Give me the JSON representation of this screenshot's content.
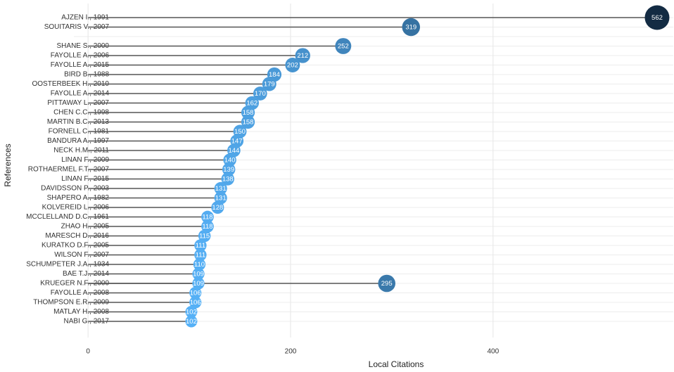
{
  "chart_data": {
    "type": "lollipop",
    "x_label": "Local Citations",
    "y_label": "References",
    "categories": [
      "AJZEN I., 1991",
      "SOUITARIS V., 2007",
      null,
      "SHANE S., 2000",
      "FAYOLLE A., 2006",
      "FAYOLLE A., 2015",
      "BIRD B., 1988",
      "OOSTERBEEK H., 2010",
      "FAYOLLE A., 2014",
      "PITTAWAY L., 2007",
      "CHEN C.C., 1998",
      "MARTIN B.C., 2013",
      "FORNELL C., 1981",
      "BANDURA A., 1997",
      "NECK H.M., 2011",
      "LINAN F., 2009",
      "ROTHAERMEL F.T., 2007",
      "LINAN F., 2015",
      "DAVIDSSON P., 2003",
      "SHAPERO A., 1982",
      "KOLVEREID L., 2006",
      "MCCLELLAND D.C., 1961",
      "ZHAO H., 2005",
      "MARESCH D., 2016",
      "KURATKO D.F., 2005",
      "WILSON F., 2007",
      "SCHUMPETER J.A., 1934",
      "BAE T.J., 2014",
      "KRUEGER N.F., 2000",
      "FAYOLLE A., 2008",
      "THOMPSON E.R., 2009",
      "MATLAY H., 2008",
      "NABI G., 2017"
    ],
    "values": [
      562,
      319,
      null,
      252,
      212,
      202,
      184,
      179,
      170,
      162,
      158,
      158,
      150,
      147,
      144,
      140,
      139,
      138,
      131,
      131,
      128,
      118,
      118,
      115,
      111,
      111,
      110,
      109,
      109,
      106,
      106,
      102,
      102
    ],
    "extra_points": [
      {
        "category": "KRUEGER N.F., 2000",
        "value": 295
      }
    ],
    "xlim": [
      -14,
      578
    ],
    "xticks": [
      0,
      200,
      400
    ],
    "color_low": "#56b1f7",
    "color_high": "#132b43",
    "stem_color": "#555555",
    "grid": true
  }
}
